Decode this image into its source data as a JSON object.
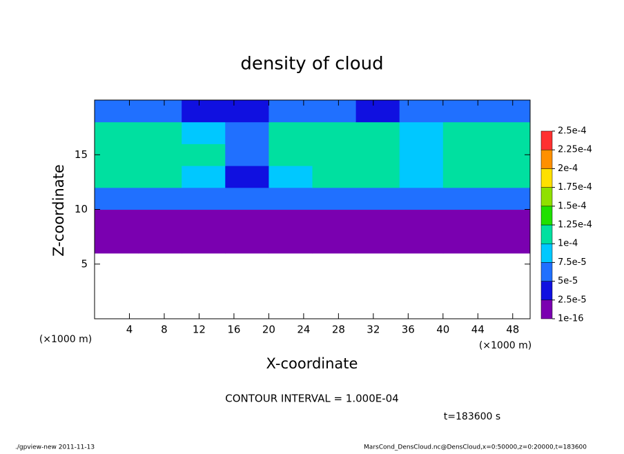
{
  "chart_data": {
    "type": "heatmap",
    "title": "density of cloud",
    "x_label": "X-coordinate",
    "y_label": "Z-coordinate",
    "x_unit": "(×1000 m)",
    "annotation": "CONTOUR INTERVAL = 1.000E-04",
    "time_label": "t=183600 s",
    "footer_left": "./gpview-new  2011-11-13",
    "footer_right": "MarsCond_DensCloud.nc@DensCloud,x=0:50000,z=0:20000,t=183600",
    "x": [
      2.5,
      7.5,
      12.5,
      17.5,
      22.5,
      27.5,
      32.5,
      37.5,
      42.5,
      47.5
    ],
    "y": [
      1,
      3,
      5,
      7,
      9,
      11,
      13,
      15,
      17,
      19
    ],
    "z": [
      [
        null,
        null,
        null,
        null,
        null,
        null,
        null,
        null,
        null,
        null
      ],
      [
        null,
        null,
        null,
        null,
        null,
        null,
        null,
        null,
        null,
        null
      ],
      [
        null,
        null,
        null,
        null,
        null,
        null,
        null,
        null,
        null,
        null
      ],
      [
        1e-16,
        1e-16,
        1e-16,
        1e-16,
        1e-16,
        1e-16,
        1e-16,
        1e-16,
        1e-16,
        1e-16
      ],
      [
        1e-16,
        1e-16,
        1e-16,
        1e-16,
        1e-16,
        1e-16,
        1e-16,
        1e-16,
        1e-16,
        1e-16
      ],
      [
        6e-05,
        6e-05,
        5e-05,
        6e-05,
        6e-05,
        7e-05,
        6e-05,
        6e-05,
        7e-05,
        5e-05
      ],
      [
        0.00011,
        0.00011,
        9e-05,
        4e-05,
        9e-05,
        0.00011,
        0.00011,
        9e-05,
        0.00012,
        0.00012
      ],
      [
        0.00012,
        0.00012,
        0.00011,
        6e-05,
        0.00011,
        0.00012,
        0.00012,
        9e-05,
        0.00012,
        0.00012
      ],
      [
        0.00011,
        0.00012,
        9e-05,
        5e-05,
        0.00011,
        0.00012,
        0.00011,
        8e-05,
        0.00012,
        0.00011
      ],
      [
        6e-05,
        5e-05,
        4e-05,
        3e-05,
        6e-05,
        5e-05,
        4e-05,
        6e-05,
        5e-05,
        6e-05
      ]
    ],
    "xlim": [
      0,
      50
    ],
    "ylim": [
      0,
      20
    ],
    "xticks": [
      4,
      8,
      12,
      16,
      20,
      24,
      28,
      32,
      36,
      40,
      44,
      48
    ],
    "yticks": [
      5,
      10,
      15
    ],
    "levels": [
      {
        "value": 1e-16,
        "label": "1e-16"
      },
      {
        "value": 2.5e-05,
        "label": "2.5e-5"
      },
      {
        "value": 5e-05,
        "label": "5e-5"
      },
      {
        "value": 7.5e-05,
        "label": "7.5e-5"
      },
      {
        "value": 0.0001,
        "label": "1e-4"
      },
      {
        "value": 0.000125,
        "label": "1.25e-4"
      },
      {
        "value": 0.00015,
        "label": "1.5e-4"
      },
      {
        "value": 0.000175,
        "label": "1.75e-4"
      },
      {
        "value": 0.0002,
        "label": "2e-4"
      },
      {
        "value": 0.000225,
        "label": "2.25e-4"
      },
      {
        "value": 0.00025,
        "label": "2.5e-4"
      }
    ],
    "colors": [
      "#7a00b0",
      "#1010e0",
      "#2070ff",
      "#00c8ff",
      "#00e0a0",
      "#20e000",
      "#90e000",
      "#ffe000",
      "#ff9000",
      "#ff3030"
    ]
  }
}
